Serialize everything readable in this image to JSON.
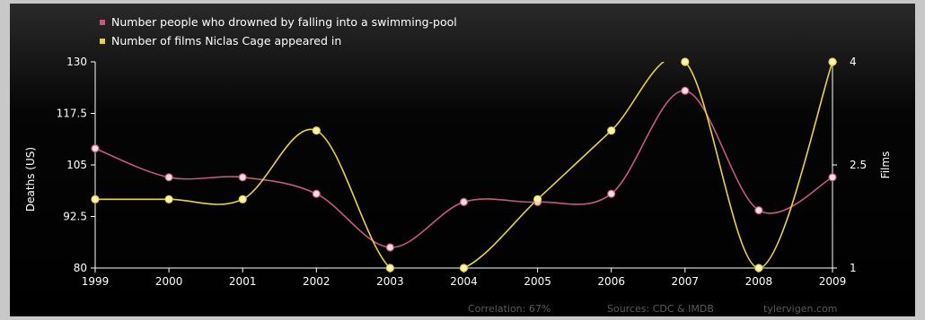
{
  "chart_data": {
    "type": "line",
    "categories": [
      "1999",
      "2000",
      "2001",
      "2002",
      "2003",
      "2004",
      "2005",
      "2006",
      "2007",
      "2008",
      "2009"
    ],
    "series": [
      {
        "name": "Number people who drowned by falling into a swimming-pool",
        "values": [
          109,
          102,
          102,
          98,
          85,
          96,
          96,
          98,
          123,
          94,
          102
        ],
        "color": "#c25b7a",
        "axis": "left"
      },
      {
        "name": "Number of films Niclas Cage appeared in",
        "values": [
          2,
          2,
          2,
          3,
          1,
          1,
          2,
          3,
          4,
          1,
          4
        ],
        "color": "#e6d34a",
        "axis": "right"
      }
    ],
    "ylabel": "Deaths (US)",
    "y2label": "Films",
    "ylim": [
      80,
      130
    ],
    "yticks": [
      "130",
      "117.5",
      "105",
      "92.5",
      "80"
    ],
    "y2lim": [
      1,
      4
    ],
    "y2ticks": [
      "4",
      "2.5",
      "1"
    ],
    "grid": false,
    "legend_position": "top-left",
    "footer": {
      "correlation": "Correlation: 67%",
      "sources": "Sources: CDC & IMDB",
      "site": "tylervigen.com"
    }
  }
}
